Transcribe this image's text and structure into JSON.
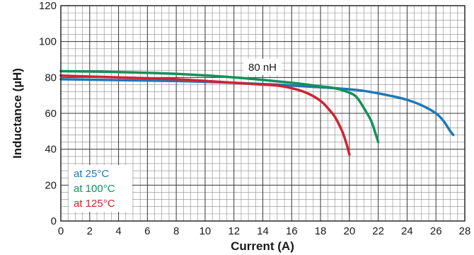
{
  "chart_data": {
    "type": "line",
    "xlabel": "Current (A)",
    "ylabel": "Inductance (µH)",
    "xlim": [
      0,
      28
    ],
    "ylim": [
      0,
      120
    ],
    "x_ticks": [
      "0",
      "2",
      "4",
      "6",
      "8",
      "10",
      "12",
      "14",
      "16",
      "18",
      "20",
      "22",
      "24",
      "26",
      "28"
    ],
    "y_ticks": [
      "0",
      "20",
      "40",
      "60",
      "80",
      "100",
      "120"
    ],
    "grid": "on, minor divisions of 0.5 A and 4 µH",
    "legend_position": "bottom-left",
    "annotation": "80 nH",
    "series": [
      {
        "name": "at 25°C",
        "color": "#1f78b8",
        "points": [
          [
            0,
            79
          ],
          [
            4,
            78.5
          ],
          [
            8,
            78
          ],
          [
            12,
            77
          ],
          [
            15,
            76
          ],
          [
            17,
            75
          ],
          [
            19,
            74
          ],
          [
            21,
            72.5
          ],
          [
            23,
            69.5
          ],
          [
            24,
            67.5
          ],
          [
            25,
            64.5
          ],
          [
            26,
            60
          ],
          [
            26.5,
            56
          ],
          [
            27,
            50
          ],
          [
            27.2,
            48
          ]
        ]
      },
      {
        "name": "at 100°C",
        "color": "#13915a",
        "points": [
          [
            0,
            83.5
          ],
          [
            4,
            83
          ],
          [
            8,
            82
          ],
          [
            12,
            80
          ],
          [
            16,
            77
          ],
          [
            18,
            75
          ],
          [
            19,
            74
          ],
          [
            20,
            71.5
          ],
          [
            20.5,
            69
          ],
          [
            21,
            63
          ],
          [
            21.5,
            56
          ],
          [
            21.8,
            49
          ],
          [
            22,
            44
          ]
        ]
      },
      {
        "name": "at 125°C",
        "color": "#cf2332",
        "points": [
          [
            0,
            81
          ],
          [
            4,
            80
          ],
          [
            8,
            79
          ],
          [
            12,
            77
          ],
          [
            14,
            76
          ],
          [
            15,
            75.5
          ],
          [
            16,
            74
          ],
          [
            17,
            71.5
          ],
          [
            18,
            67
          ],
          [
            18.6,
            62
          ],
          [
            19,
            58
          ],
          [
            19.5,
            50
          ],
          [
            19.8,
            43
          ],
          [
            20,
            37
          ]
        ]
      }
    ]
  }
}
